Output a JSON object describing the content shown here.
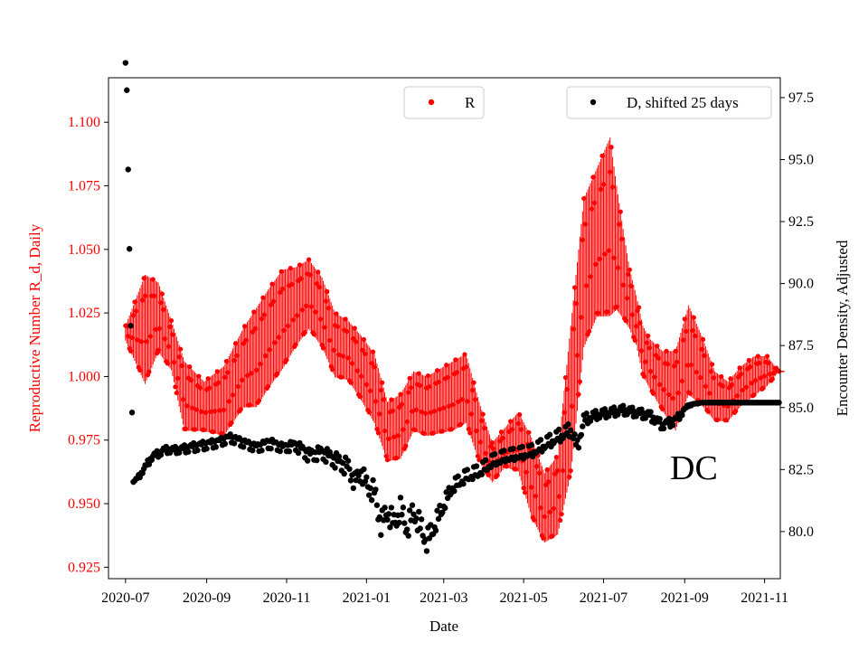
{
  "chart_data": {
    "type": "scatter",
    "title": "",
    "annotation": "DC",
    "xlabel": "Date",
    "ylabel_left": "Reproductive Number R_d, Daily",
    "ylabel_right": "Encounter Density, Adjusted",
    "x_ticks": [
      "2020-07",
      "2020-09",
      "2020-11",
      "2021-01",
      "2021-03",
      "2021-05",
      "2021-07",
      "2021-09",
      "2021-11"
    ],
    "y_left_ticks": [
      "0.925",
      "0.950",
      "0.975",
      "1.000",
      "1.025",
      "1.050",
      "1.075",
      "1.100"
    ],
    "y_right_ticks": [
      "80.0",
      "82.5",
      "85.0",
      "87.5",
      "90.0",
      "92.5",
      "95.0",
      "97.5"
    ],
    "x_range_days": [
      -13,
      500
    ],
    "ylim_left": [
      0.9205,
      1.1175
    ],
    "ylim_right": [
      78.1,
      98.3
    ],
    "legend": [
      {
        "label": "R",
        "color": "#ff0000",
        "position": "upper-center"
      },
      {
        "label": "D, shifted 25 days",
        "color": "#000000",
        "position": "upper-right"
      }
    ],
    "colors": {
      "r_series": "#ff0000",
      "d_series": "#000000"
    },
    "series": [
      {
        "name": "R",
        "axis": "left",
        "color": "#ff0000",
        "x_days": [
          0,
          15,
          25,
          35,
          45,
          60,
          75,
          90,
          100,
          110,
          120,
          130,
          140,
          150,
          160,
          170,
          180,
          190,
          200,
          210,
          220,
          230,
          240,
          250,
          260,
          270,
          280,
          290,
          300,
          310,
          320,
          330,
          340,
          350,
          360,
          370,
          375,
          380,
          385,
          390,
          395,
          400,
          410,
          420,
          430,
          440,
          450,
          460,
          470,
          480,
          490,
          499
        ],
        "values": [
          1.017,
          1.018,
          1.023,
          1.012,
          0.992,
          0.988,
          0.99,
          1.003,
          1.007,
          1.015,
          1.022,
          1.027,
          1.032,
          1.025,
          1.012,
          1.01,
          1.003,
          0.995,
          0.978,
          0.98,
          0.99,
          0.988,
          0.99,
          0.992,
          0.995,
          0.978,
          0.966,
          0.972,
          0.974,
          0.96,
          0.948,
          0.953,
          0.99,
          1.04,
          1.052,
          1.058,
          1.05,
          1.04,
          1.03,
          1.022,
          1.01,
          1.005,
          0.998,
          0.994,
          1.01,
          1.002,
          0.992,
          0.99,
          0.996,
          1.0,
          1.002,
          1.002
        ],
        "amplitude": [
          0.003,
          0.022,
          0.014,
          0.01,
          0.014,
          0.01,
          0.014,
          0.016,
          0.02,
          0.02,
          0.02,
          0.016,
          0.014,
          0.014,
          0.013,
          0.012,
          0.013,
          0.014,
          0.012,
          0.013,
          0.012,
          0.012,
          0.013,
          0.014,
          0.014,
          0.012,
          0.008,
          0.008,
          0.012,
          0.016,
          0.014,
          0.016,
          0.03,
          0.03,
          0.03,
          0.036,
          0.025,
          0.018,
          0.012,
          0.01,
          0.01,
          0.01,
          0.012,
          0.016,
          0.018,
          0.014,
          0.01,
          0.008,
          0.008,
          0.008,
          0.006,
          0.0
        ]
      },
      {
        "name": "D, shifted 25 days",
        "axis": "right",
        "color": "#000000",
        "x_days": [
          0,
          1,
          2,
          3,
          4,
          5,
          6,
          10,
          20,
          30,
          40,
          50,
          60,
          70,
          80,
          90,
          100,
          110,
          120,
          130,
          140,
          150,
          160,
          170,
          175,
          180,
          185,
          190,
          195,
          200,
          205,
          210,
          215,
          220,
          225,
          230,
          235,
          240,
          245,
          250,
          260,
          270,
          280,
          290,
          300,
          310,
          320,
          330,
          340,
          345,
          350,
          360,
          370,
          380,
          390,
          400,
          410,
          420,
          430,
          440,
          450,
          460,
          470,
          480,
          490,
          499
        ],
        "values": [
          98.9,
          97.8,
          94.6,
          91.4,
          88.3,
          84.8,
          82.0,
          82.2,
          83.0,
          83.3,
          83.3,
          83.4,
          83.5,
          83.6,
          83.8,
          83.6,
          83.4,
          83.6,
          83.4,
          83.5,
          83.1,
          83.2,
          82.9,
          82.6,
          82.0,
          82.4,
          81.8,
          81.6,
          80.3,
          80.8,
          80.3,
          80.9,
          80.1,
          80.8,
          80.2,
          79.6,
          80.1,
          80.7,
          81.3,
          81.8,
          82.2,
          82.4,
          82.8,
          83.0,
          83.1,
          83.2,
          83.5,
          83.8,
          84.1,
          83.4,
          84.5,
          84.7,
          84.8,
          84.9,
          84.8,
          84.7,
          84.3,
          84.5,
          85.1,
          85.2,
          85.2,
          85.2,
          85.2,
          85.2,
          85.2,
          85.2
        ],
        "noise": [
          0.0,
          0.0,
          0.0,
          0.0,
          0.0,
          0.0,
          0.0,
          0.1,
          0.15,
          0.15,
          0.15,
          0.2,
          0.2,
          0.2,
          0.2,
          0.2,
          0.2,
          0.25,
          0.2,
          0.25,
          0.3,
          0.3,
          0.35,
          0.4,
          0.4,
          0.4,
          0.4,
          0.5,
          0.5,
          0.5,
          0.5,
          0.5,
          0.5,
          0.5,
          0.5,
          0.5,
          0.4,
          0.4,
          0.3,
          0.3,
          0.3,
          0.3,
          0.3,
          0.3,
          0.3,
          0.3,
          0.3,
          0.3,
          0.3,
          0.3,
          0.25,
          0.2,
          0.2,
          0.2,
          0.2,
          0.2,
          0.2,
          0.2,
          0.05,
          0.0,
          0.0,
          0.0,
          0.0,
          0.0,
          0.0,
          0.0
        ]
      }
    ]
  }
}
